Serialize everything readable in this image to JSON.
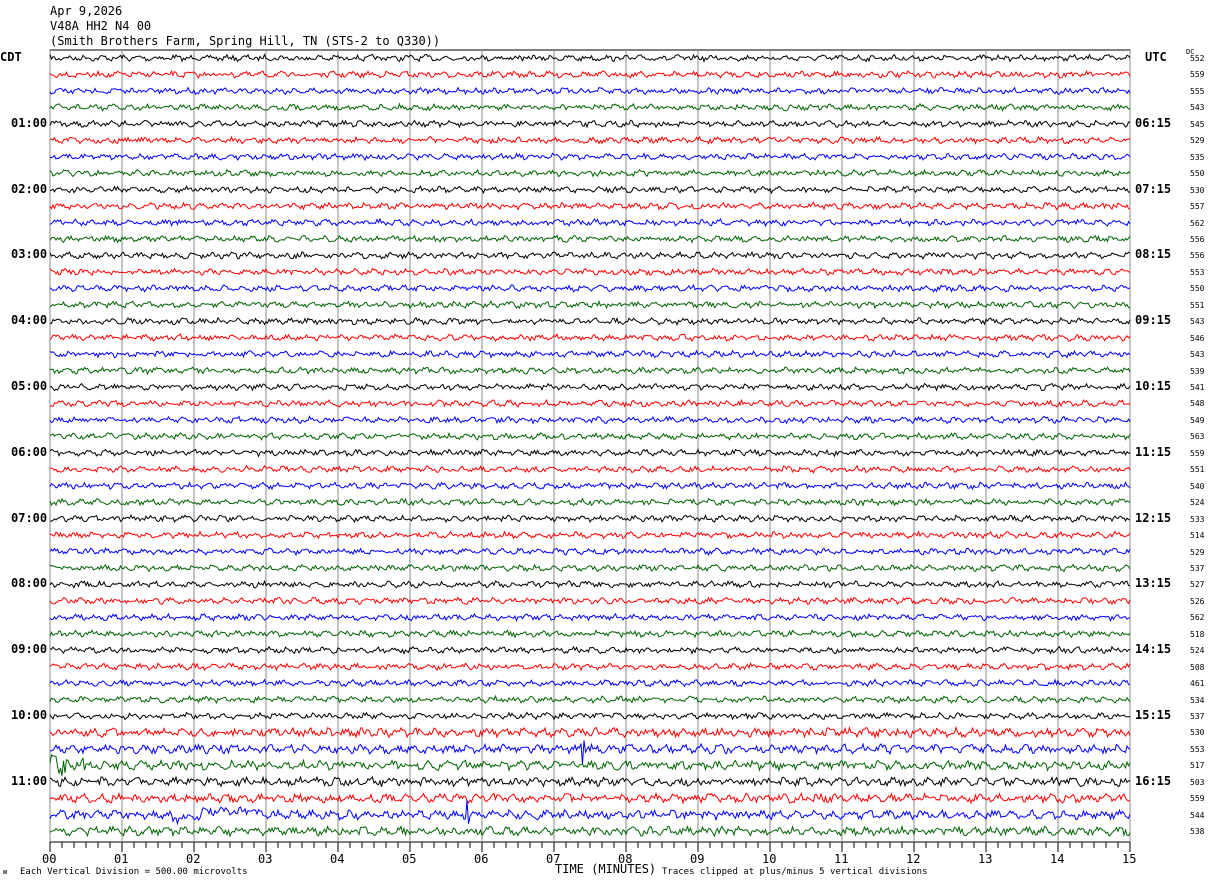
{
  "header": {
    "date": "Apr 9,2026",
    "station": "V48A HH2 N4 00",
    "location": "(Smith Brothers Farm, Spring Hill, TN (STS-2 to Q330))"
  },
  "left_axis_label": "CDT",
  "right_axis_label": "UTC",
  "dc_label": "DC",
  "chart_data": {
    "type": "line",
    "xlabel": "TIME (MINUTES)",
    "xlim": [
      0,
      15
    ],
    "x_ticks": [
      "00",
      "01",
      "02",
      "03",
      "04",
      "05",
      "06",
      "07",
      "08",
      "09",
      "10",
      "11",
      "12",
      "13",
      "14",
      "15"
    ],
    "traces_per_hour": 4,
    "trace_count": 48,
    "trace_colors": [
      "#000000",
      "#ff0000",
      "#0000ff",
      "#006400"
    ],
    "left_time_labels": [
      "01:00",
      "02:00",
      "03:00",
      "04:00",
      "05:00",
      "06:00",
      "07:00",
      "08:00",
      "09:00",
      "10:00",
      "11:00"
    ],
    "right_time_labels": [
      "06:15",
      "07:15",
      "08:15",
      "09:15",
      "10:15",
      "11:15",
      "12:15",
      "13:15",
      "14:15",
      "15:15",
      "16:15"
    ],
    "dc_offsets": [
      552,
      559,
      555,
      543,
      545,
      529,
      535,
      550,
      530,
      557,
      562,
      556,
      556,
      553,
      550,
      551,
      543,
      546,
      543,
      539,
      541,
      548,
      549,
      563,
      559,
      551,
      540,
      524,
      533,
      514,
      529,
      537,
      527,
      526,
      562,
      518,
      524,
      508,
      461,
      534,
      537,
      530,
      553,
      517,
      503,
      559,
      544,
      538
    ],
    "events": [
      {
        "trace": 42,
        "minute": 7.4
      },
      {
        "trace": 46,
        "minute": 5.8
      }
    ]
  },
  "footer": {
    "scale": "Each Vertical Division =  500.00 microvolts",
    "clip": "Traces clipped at plus/minus 5 vertical divisions"
  }
}
